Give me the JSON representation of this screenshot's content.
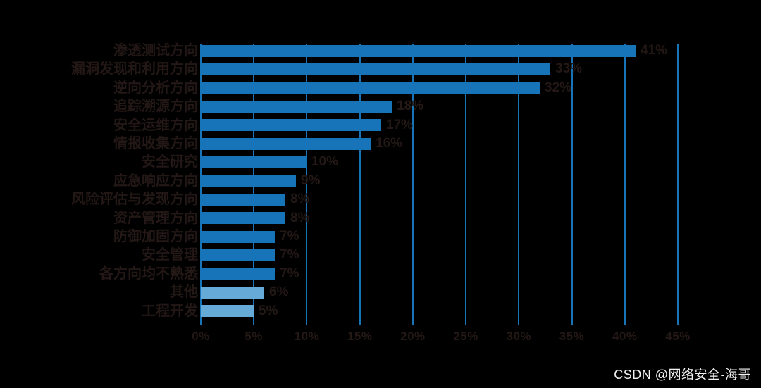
{
  "watermark": {
    "text": "CSDN @网络安全-海哥",
    "color": "#f2f2f2"
  },
  "chart_data": {
    "type": "bar",
    "orientation": "horizontal",
    "title": "",
    "xlabel": "",
    "ylabel": "",
    "categories": [
      "渗透测试方向",
      "漏洞发现和利用方向",
      "逆向分析方向",
      "追踪溯源方向",
      "安全运维方向",
      "情报收集方向",
      "安全研究",
      "应急响应方向",
      "风险评估与发现方向",
      "资产管理方向",
      "防御加固方向",
      "安全管理",
      "各方向均不熟悉",
      "其他",
      "工程开发"
    ],
    "values": [
      41,
      33,
      32,
      18,
      17,
      16,
      10,
      9,
      8,
      8,
      7,
      7,
      7,
      6,
      5
    ],
    "value_labels": [
      "41%",
      "33%",
      "32%",
      "18%",
      "17%",
      "16%",
      "10%",
      "9%",
      "8%",
      "8%",
      "7%",
      "7%",
      "7%",
      "6%",
      "5%"
    ],
    "x_ticks": [
      "0%",
      "5%",
      "10%",
      "15%",
      "20%",
      "25%",
      "30%",
      "35%",
      "40%",
      "45%"
    ],
    "xlim": [
      0,
      45
    ],
    "grid": true,
    "legend": false,
    "light_bar_indices": [
      13,
      14
    ],
    "colors": {
      "bar": "#1774b9",
      "bar_light": "#66abd8",
      "grid": "#1774b9",
      "text": "#231815",
      "watermark": "#f2f2f2"
    }
  }
}
